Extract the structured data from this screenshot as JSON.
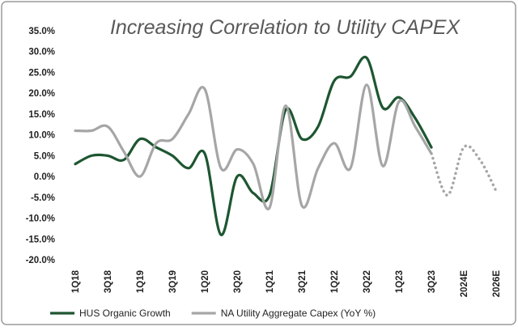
{
  "chart_data": {
    "type": "line",
    "title": "Increasing Correlation to Utility CAPEX",
    "categories": [
      "1Q18",
      null,
      "3Q18",
      null,
      "1Q19",
      null,
      "3Q19",
      null,
      "1Q20",
      null,
      "3Q20",
      null,
      "1Q21",
      null,
      "3Q21",
      null,
      "1Q22",
      null,
      "3Q22",
      null,
      "1Q23",
      null,
      "3Q23",
      null,
      "2024E",
      null,
      "2026E"
    ],
    "series": [
      {
        "name": "HUS Organic Growth",
        "color": "#1e5631",
        "values": [
          3,
          5,
          5,
          4,
          9,
          7,
          5,
          2,
          5.5,
          -14,
          0,
          -4,
          -4.5,
          16,
          9,
          12,
          23,
          24,
          28.5,
          16.5,
          19,
          14,
          7,
          null,
          null,
          null,
          null
        ]
      },
      {
        "name": "NA Utility Aggregate Capex (YoY %)",
        "color": "#a6a6a6",
        "dotted_after": 22,
        "values": [
          11,
          11,
          12,
          6,
          0,
          8,
          9,
          15,
          21,
          2,
          6.5,
          3,
          -7.5,
          17,
          -7,
          2,
          8,
          2,
          22,
          2.5,
          18,
          12,
          5.5,
          -4.5,
          7,
          4,
          -3.5
        ]
      }
    ],
    "ylim": [
      -20,
      35
    ],
    "yticks": [
      {
        "value": -20,
        "label": "-20.0%"
      },
      {
        "value": -15,
        "label": "-15.0%"
      },
      {
        "value": -10,
        "label": "-10.0%"
      },
      {
        "value": -5,
        "label": "-5.0%"
      },
      {
        "value": 0,
        "label": "0.0%"
      },
      {
        "value": 5,
        "label": "5.0%"
      },
      {
        "value": 10,
        "label": "10.0%"
      },
      {
        "value": 15,
        "label": "15.0%"
      },
      {
        "value": 20,
        "label": "20.0%"
      },
      {
        "value": 25,
        "label": "25.0%"
      },
      {
        "value": 30,
        "label": "30.0%"
      },
      {
        "value": 35,
        "label": "35.0%"
      }
    ],
    "grid": false,
    "legend": "bottom"
  }
}
